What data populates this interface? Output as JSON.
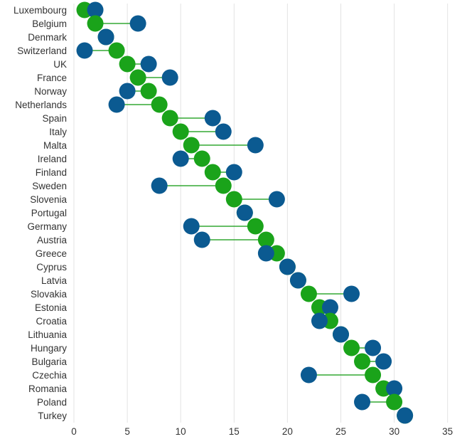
{
  "chart_data": {
    "type": "dumbbell",
    "title": "",
    "xlabel": "",
    "ylabel": "",
    "xlim": [
      0,
      35
    ],
    "x_ticks": [
      0,
      5,
      10,
      15,
      20,
      25,
      30,
      35
    ],
    "grid": "vertical",
    "categories": [
      "Luxembourg",
      "Belgium",
      "Denmark",
      "Switzerland",
      "UK",
      "France",
      "Norway",
      "Netherlands",
      "Spain",
      "Italy",
      "Malta",
      "Ireland",
      "Finland",
      "Sweden",
      "Slovenia",
      "Portugal",
      "Germany",
      "Austria",
      "Greece",
      "Cyprus",
      "Latvia",
      "Slovakia",
      "Estonia",
      "Croatia",
      "Lithuania",
      "Hungary",
      "Bulgaria",
      "Czechia",
      "Romania",
      "Poland",
      "Turkey"
    ],
    "series": [
      {
        "name": "green",
        "color": "#1aa31a",
        "values": [
          1,
          2,
          3,
          4,
          5,
          6,
          7,
          8,
          9,
          10,
          11,
          12,
          13,
          14,
          15,
          16,
          17,
          18,
          19,
          20,
          21,
          22,
          23,
          24,
          25,
          26,
          27,
          28,
          29,
          30,
          31
        ]
      },
      {
        "name": "blue",
        "color": "#0b5a91",
        "values": [
          2,
          6,
          3,
          1,
          7,
          9,
          5,
          4,
          13,
          14,
          17,
          10,
          15,
          8,
          19,
          16,
          11,
          12,
          18,
          20,
          21,
          26,
          24,
          23,
          25,
          28,
          29,
          22,
          30,
          27,
          31
        ]
      }
    ],
    "connector_color": "#33a833",
    "draw_order": "blue_first_unless_greater"
  }
}
